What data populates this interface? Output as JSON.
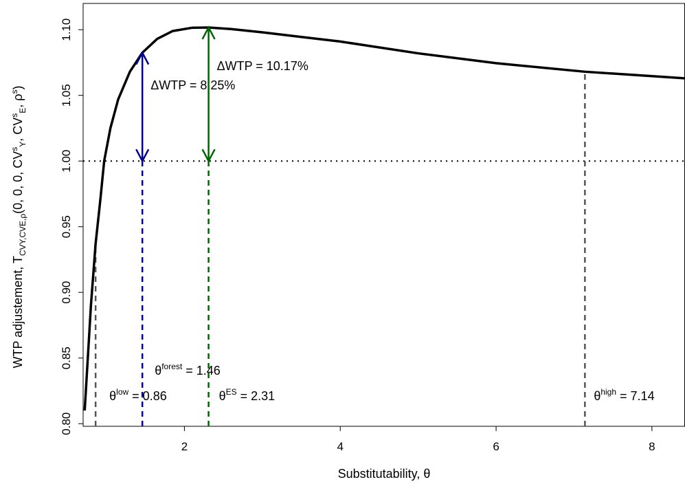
{
  "chart_data": {
    "type": "line",
    "xlabel": "Substitutability, θ",
    "ylabel": [
      {
        "text": "WTP adjustement,  T",
        "style": "normal"
      },
      {
        "text": "CVY,CVE,ρ",
        "style": "sub"
      },
      {
        "text": "(0, 0, 0, CV",
        "style": "normal"
      },
      {
        "text": "s",
        "style": "sup"
      },
      {
        "text": "Y",
        "style": "sub"
      },
      {
        "text": ", CV",
        "style": "normal"
      },
      {
        "text": "s",
        "style": "sup"
      },
      {
        "text": "E",
        "style": "sub"
      },
      {
        "text": ", ρ",
        "style": "normal"
      },
      {
        "text": "s",
        "style": "sup"
      },
      {
        "text": ")",
        "style": "normal"
      }
    ],
    "xlim": [
      0.7,
      8.42
    ],
    "ylim": [
      0.798,
      1.12
    ],
    "xticks": [
      2,
      4,
      6,
      8
    ],
    "yticks": [
      {
        "value": 0.8,
        "label": "0.80"
      },
      {
        "value": 0.85,
        "label": "0.85"
      },
      {
        "value": 0.9,
        "label": "0.90"
      },
      {
        "value": 0.95,
        "label": "0.95"
      },
      {
        "value": 1.0,
        "label": "1.00"
      },
      {
        "value": 1.05,
        "label": "1.05"
      },
      {
        "value": 1.1,
        "label": "1.10"
      }
    ],
    "series": [
      {
        "color": "#000000",
        "x": [
          0.72,
          0.75,
          0.8,
          0.86,
          0.92,
          0.97,
          1.05,
          1.15,
          1.3,
          1.46,
          1.65,
          1.85,
          2.1,
          2.31,
          2.6,
          3,
          3.5,
          4,
          5,
          6,
          7.14,
          8.42
        ],
        "values": [
          0.81,
          0.84,
          0.89,
          0.937,
          0.97,
          1.0,
          1.025,
          1.047,
          1.068,
          1.0825,
          1.093,
          1.099,
          1.1015,
          1.1017,
          1.1005,
          1.098,
          1.0945,
          1.091,
          1.082,
          1.0745,
          1.068,
          1.063
        ]
      }
    ],
    "hline": {
      "y": 1.0,
      "color": "#000000"
    },
    "markers": [
      {
        "x": 0.86,
        "top": 0.937,
        "color": "#555555",
        "symbol": "θ",
        "sup": "low",
        "label": " = 0.86"
      },
      {
        "x": 1.46,
        "top": 1.0,
        "color": "#00008b",
        "symbol": "θ",
        "sup": "forest",
        "label": " = 1.46"
      },
      {
        "x": 2.31,
        "top": 1.0,
        "color": "#006400",
        "symbol": "θ",
        "sup": "ES",
        "label": " = 2.31"
      },
      {
        "x": 7.14,
        "top": 1.068,
        "color": "#555555",
        "symbol": "θ",
        "sup": "high",
        "label": " = 7.14"
      }
    ],
    "arrows": [
      {
        "x": 1.46,
        "from": 1.0,
        "to": 1.0825,
        "color": "#00008b",
        "label": "ΔWTP = 8.25%"
      },
      {
        "x": 2.31,
        "from": 1.0,
        "to": 1.1017,
        "color": "#006400",
        "label": "ΔWTP = 10.17%"
      }
    ]
  }
}
